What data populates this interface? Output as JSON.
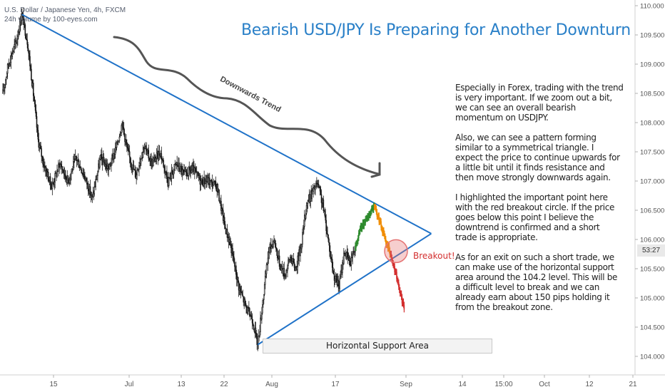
{
  "symbol": {
    "line1": "U.S. Dollar / Japanese Yen, 4h, FXCM",
    "line2": "24h volume by 100-eyes.com"
  },
  "title": "Bearish USD/JPY Is Preparing for Another Downturn",
  "commentary": [
    "Especially in Forex, trading with the trend is very important. If we zoom out a bit, we can see an overall bearish momentum on USDJPY.",
    "Also, we can see a pattern forming similar to a symmetrical triangle. I expect the price to continue upwards for a little bit until it finds resistance and then move strongly downwards again.",
    "I highlighted the important point here with the red breakout circle. If the price goes below this point I believe the downtrend is confirmed and a short trade is appropriate.",
    "As for an exit on such a short trade, we can make use of the horizontal support area around the 104.2 level. This will be a difficult level to break and we can already earn about 150 pips holding it from the breakout zone."
  ],
  "annotations": {
    "trend_label": "Downwards Trend",
    "breakout_label": "Breakout!",
    "support_label": "Horizontal Support Area",
    "price_tag": "53:27"
  },
  "colors": {
    "title": "#2a80c8",
    "trendline": "#1f72c8",
    "candles": "#1a1a1a",
    "projection_up": "#2e8b2e",
    "projection_top": "#f08c00",
    "projection_down": "#d32f2f",
    "arrow": "#555555",
    "breakout_circle": "#e57373"
  },
  "chart_data": {
    "type": "candlestick",
    "title": "Bearish USD/JPY Is Preparing for Another Downturn",
    "y_ticks": [
      104.0,
      104.5,
      105.0,
      105.5,
      106.0,
      106.5,
      107.0,
      107.5,
      108.0,
      108.5,
      109.0,
      109.5,
      110.0
    ],
    "x_ticks": [
      "15",
      "Jul",
      "13",
      "22",
      "Aug",
      "17",
      "Sep",
      "14",
      "15:00",
      "Oct",
      "12",
      "21"
    ],
    "ylim": [
      103.9,
      110.1
    ],
    "price_path": [
      {
        "x": 0,
        "y": 108.5
      },
      {
        "x": 2,
        "y": 109.0
      },
      {
        "x": 5,
        "y": 109.4
      },
      {
        "x": 7,
        "y": 109.85
      },
      {
        "x": 9,
        "y": 109.4
      },
      {
        "x": 11,
        "y": 108.6
      },
      {
        "x": 13,
        "y": 107.7
      },
      {
        "x": 15,
        "y": 107.3
      },
      {
        "x": 18,
        "y": 106.9
      },
      {
        "x": 21,
        "y": 107.3
      },
      {
        "x": 24,
        "y": 107.0
      },
      {
        "x": 27,
        "y": 107.4
      },
      {
        "x": 30,
        "y": 107.1
      },
      {
        "x": 33,
        "y": 106.7
      },
      {
        "x": 36,
        "y": 107.4
      },
      {
        "x": 39,
        "y": 107.2
      },
      {
        "x": 42,
        "y": 107.6
      },
      {
        "x": 44,
        "y": 108.0
      },
      {
        "x": 46,
        "y": 107.5
      },
      {
        "x": 49,
        "y": 107.1
      },
      {
        "x": 52,
        "y": 107.6
      },
      {
        "x": 55,
        "y": 107.3
      },
      {
        "x": 58,
        "y": 107.5
      },
      {
        "x": 61,
        "y": 107.0
      },
      {
        "x": 64,
        "y": 107.3
      },
      {
        "x": 67,
        "y": 107.1
      },
      {
        "x": 70,
        "y": 107.2
      },
      {
        "x": 73,
        "y": 107.0
      },
      {
        "x": 76,
        "y": 107.0
      },
      {
        "x": 79,
        "y": 106.9
      },
      {
        "x": 82,
        "y": 106.2
      },
      {
        "x": 84,
        "y": 105.9
      },
      {
        "x": 87,
        "y": 105.2
      },
      {
        "x": 90,
        "y": 104.8
      },
      {
        "x": 92,
        "y": 104.65
      },
      {
        "x": 94,
        "y": 104.2
      },
      {
        "x": 96,
        "y": 105.0
      },
      {
        "x": 98,
        "y": 105.8
      },
      {
        "x": 100,
        "y": 106.0
      },
      {
        "x": 102,
        "y": 105.6
      },
      {
        "x": 104,
        "y": 105.4
      },
      {
        "x": 106,
        "y": 105.7
      },
      {
        "x": 108,
        "y": 105.5
      },
      {
        "x": 110,
        "y": 105.9
      },
      {
        "x": 112,
        "y": 106.6
      },
      {
        "x": 114,
        "y": 106.8
      },
      {
        "x": 116,
        "y": 106.95
      },
      {
        "x": 118,
        "y": 106.6
      },
      {
        "x": 120,
        "y": 106.0
      },
      {
        "x": 122,
        "y": 105.4
      },
      {
        "x": 124,
        "y": 105.2
      },
      {
        "x": 126,
        "y": 105.8
      },
      {
        "x": 128,
        "y": 105.6
      },
      {
        "x": 130,
        "y": 105.9
      }
    ],
    "projection": {
      "up": [
        {
          "x": 130,
          "y": 105.9
        },
        {
          "x": 132,
          "y": 106.2
        },
        {
          "x": 134,
          "y": 106.35
        },
        {
          "x": 136,
          "y": 106.5
        },
        {
          "x": 137,
          "y": 106.55
        }
      ],
      "top": [
        {
          "x": 137,
          "y": 106.55
        },
        {
          "x": 139,
          "y": 106.3
        },
        {
          "x": 141,
          "y": 106.0
        },
        {
          "x": 143,
          "y": 105.75
        }
      ],
      "down": [
        {
          "x": 143,
          "y": 105.75
        },
        {
          "x": 145,
          "y": 105.4
        },
        {
          "x": 147,
          "y": 105.0
        },
        {
          "x": 148,
          "y": 104.8
        }
      ]
    },
    "trendlines": [
      {
        "name": "resistance",
        "from": {
          "x": 7,
          "y": 109.85
        },
        "to": {
          "x": 158,
          "y": 106.1
        }
      },
      {
        "name": "support",
        "from": {
          "x": 94,
          "y": 104.2
        },
        "to": {
          "x": 158,
          "y": 106.1
        }
      }
    ],
    "support_level": 104.2,
    "breakout": {
      "x": 145,
      "y": 105.8
    }
  }
}
